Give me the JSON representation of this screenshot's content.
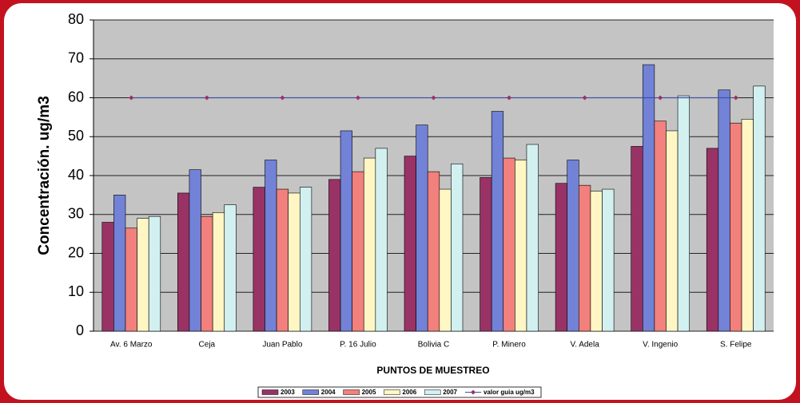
{
  "chart_data": {
    "type": "bar",
    "y_label": "Concentración. ug/m3",
    "x_label": "PUNTOS DE MUESTREO",
    "categories": [
      "Av. 6 Marzo",
      "Ceja",
      "Juan Pablo",
      "P. 16 Julio",
      "Bolivia C",
      "P. Minero",
      "V. Adela",
      "V. Ingenio",
      "S. Felipe"
    ],
    "series": [
      {
        "name": "2003",
        "color": "#993366",
        "values": [
          28,
          35.5,
          37,
          39,
          45,
          39.5,
          38,
          47.5,
          47
        ]
      },
      {
        "name": "2004",
        "color": "#7282d6",
        "values": [
          35,
          41.5,
          44,
          51.5,
          53,
          56.5,
          44,
          68.5,
          62
        ]
      },
      {
        "name": "2005",
        "color": "#f2807c",
        "values": [
          26.5,
          29.5,
          36.5,
          41,
          41,
          44.5,
          37.5,
          54,
          53.5
        ]
      },
      {
        "name": "2006",
        "color": "#fff6c4",
        "values": [
          29,
          30.5,
          35.5,
          44.5,
          36.5,
          44,
          36,
          51.5,
          54.5
        ]
      },
      {
        "name": "2007",
        "color": "#d2f0f0",
        "values": [
          29.5,
          32.5,
          37,
          47,
          43,
          48,
          36.5,
          60.5,
          63
        ]
      },
      {
        "name": "valor guia ug/m3",
        "type": "line",
        "color": "#3f4fa8",
        "marker_color": "#993366",
        "values": [
          60,
          60,
          60,
          60,
          60,
          60,
          60,
          60,
          60
        ]
      }
    ],
    "ylim": [
      0,
      80
    ],
    "yticks": [
      0,
      10,
      20,
      30,
      40,
      50,
      60,
      70,
      80
    ],
    "grid": true,
    "legend": "bottom"
  }
}
